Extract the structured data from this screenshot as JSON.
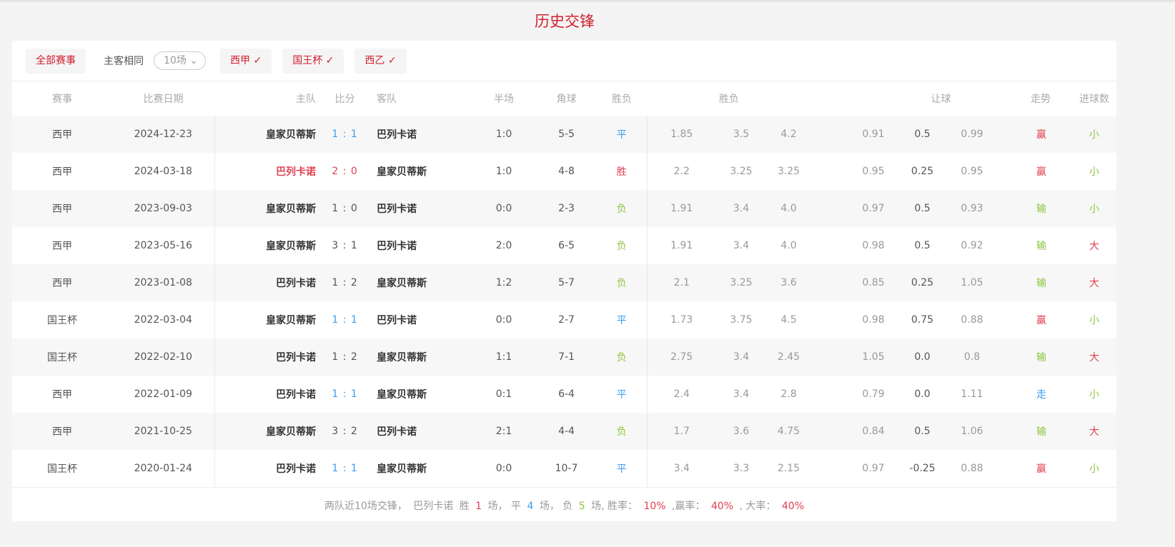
{
  "title": "历史交锋",
  "filters": {
    "all": "全部赛事",
    "same_label": "主客相同",
    "count_select": "10场",
    "leagues": [
      "西甲 ✓",
      "国王杯 ✓",
      "西乙 ✓"
    ]
  },
  "headers": {
    "league": "赛事",
    "date": "比赛日期",
    "home": "主队",
    "score": "比分",
    "away": "客队",
    "half": "半场",
    "corner": "角球",
    "result": "胜负",
    "odds": "胜负",
    "handicap": "让球",
    "trend": "走势",
    "goals": "进球数"
  },
  "colors": {
    "win": "#e04050",
    "draw": "#3a9cf0",
    "loss": "#8cc63f",
    "accent": "#d0202e"
  },
  "rows": [
    {
      "league": "西甲",
      "date": "2024-12-23",
      "home": "皇家贝蒂斯",
      "hs": "1",
      "as": "1",
      "away": "巴列卡诺",
      "half": "1:0",
      "corner": "5-5",
      "result": "平",
      "o1": "1.85",
      "o2": "3.5",
      "o3": "4.2",
      "h1": "0.91",
      "h2": "0.5",
      "h3": "0.99",
      "trend": "赢",
      "goals": "小"
    },
    {
      "league": "西甲",
      "date": "2024-03-18",
      "home": "巴列卡诺",
      "hs": "2",
      "as": "0",
      "away": "皇家贝蒂斯",
      "half": "1:0",
      "corner": "4-8",
      "result": "胜",
      "o1": "2.2",
      "o2": "3.25",
      "o3": "3.25",
      "h1": "0.95",
      "h2": "0.25",
      "h3": "0.95",
      "trend": "赢",
      "goals": "小"
    },
    {
      "league": "西甲",
      "date": "2023-09-03",
      "home": "皇家贝蒂斯",
      "hs": "1",
      "as": "0",
      "away": "巴列卡诺",
      "half": "0:0",
      "corner": "2-3",
      "result": "负",
      "o1": "1.91",
      "o2": "3.4",
      "o3": "4.0",
      "h1": "0.97",
      "h2": "0.5",
      "h3": "0.93",
      "trend": "输",
      "goals": "小"
    },
    {
      "league": "西甲",
      "date": "2023-05-16",
      "home": "皇家贝蒂斯",
      "hs": "3",
      "as": "1",
      "away": "巴列卡诺",
      "half": "2:0",
      "corner": "6-5",
      "result": "负",
      "o1": "1.91",
      "o2": "3.4",
      "o3": "4.0",
      "h1": "0.98",
      "h2": "0.5",
      "h3": "0.92",
      "trend": "输",
      "goals": "大"
    },
    {
      "league": "西甲",
      "date": "2023-01-08",
      "home": "巴列卡诺",
      "hs": "1",
      "as": "2",
      "away": "皇家贝蒂斯",
      "half": "1:2",
      "corner": "5-7",
      "result": "负",
      "o1": "2.1",
      "o2": "3.25",
      "o3": "3.6",
      "h1": "0.85",
      "h2": "0.25",
      "h3": "1.05",
      "trend": "输",
      "goals": "大"
    },
    {
      "league": "国王杯",
      "date": "2022-03-04",
      "home": "皇家贝蒂斯",
      "hs": "1",
      "as": "1",
      "away": "巴列卡诺",
      "half": "0:0",
      "corner": "2-7",
      "result": "平",
      "o1": "1.73",
      "o2": "3.75",
      "o3": "4.5",
      "h1": "0.98",
      "h2": "0.75",
      "h3": "0.88",
      "trend": "赢",
      "goals": "小"
    },
    {
      "league": "国王杯",
      "date": "2022-02-10",
      "home": "巴列卡诺",
      "hs": "1",
      "as": "2",
      "away": "皇家贝蒂斯",
      "half": "1:1",
      "corner": "7-1",
      "result": "负",
      "o1": "2.75",
      "o2": "3.4",
      "o3": "2.45",
      "h1": "1.05",
      "h2": "0.0",
      "h3": "0.8",
      "trend": "输",
      "goals": "大"
    },
    {
      "league": "西甲",
      "date": "2022-01-09",
      "home": "巴列卡诺",
      "hs": "1",
      "as": "1",
      "away": "皇家贝蒂斯",
      "half": "0:1",
      "corner": "6-4",
      "result": "平",
      "o1": "2.4",
      "o2": "3.4",
      "o3": "2.8",
      "h1": "0.79",
      "h2": "0.0",
      "h3": "1.11",
      "trend": "走",
      "goals": "小"
    },
    {
      "league": "西甲",
      "date": "2021-10-25",
      "home": "皇家贝蒂斯",
      "hs": "3",
      "as": "2",
      "away": "巴列卡诺",
      "half": "2:1",
      "corner": "4-4",
      "result": "负",
      "o1": "1.7",
      "o2": "3.6",
      "o3": "4.75",
      "h1": "0.84",
      "h2": "0.5",
      "h3": "1.06",
      "trend": "输",
      "goals": "大"
    },
    {
      "league": "国王杯",
      "date": "2020-01-24",
      "home": "巴列卡诺",
      "hs": "1",
      "as": "1",
      "away": "皇家贝蒂斯",
      "half": "0:0",
      "corner": "10-7",
      "result": "平",
      "o1": "3.4",
      "o2": "3.3",
      "o3": "2.15",
      "h1": "0.97",
      "h2": "-0.25",
      "h3": "0.88",
      "trend": "赢",
      "goals": "小"
    }
  ],
  "footer": {
    "t1": "两队近10场交锋，",
    "team": "巴列卡诺",
    "t2": "胜",
    "w": "1",
    "t3": "场，  平",
    "d": "4",
    "t4": "场，  负",
    "l": "5",
    "t5": "场, 胜率：",
    "winrate": "10%",
    "t6": ",赢率：",
    "yingrate": "40%",
    "t7": ", 大率：",
    "bigrate": "40%"
  }
}
